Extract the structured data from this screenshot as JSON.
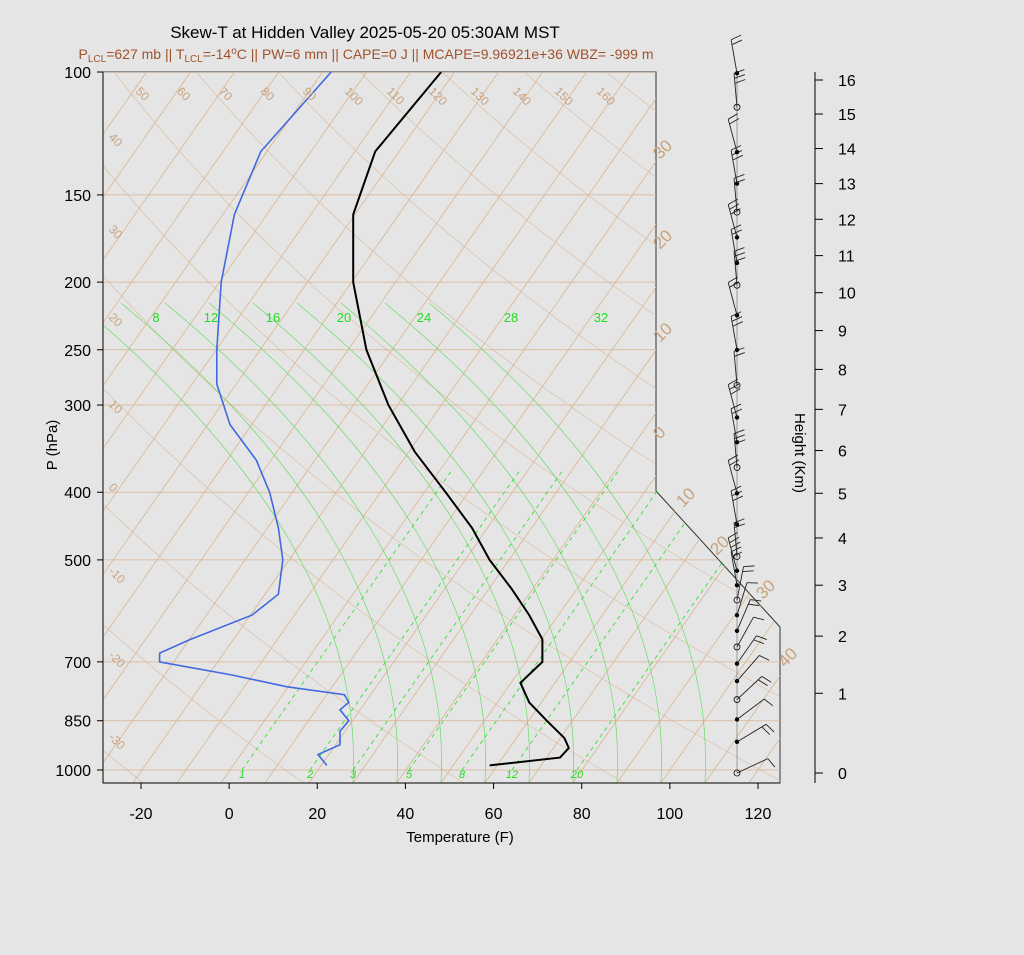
{
  "title": "Skew-T at Hidden Valley 2025-05-20 05:30AM MST",
  "subtitle_parts": {
    "p_lcl_prefix": "P",
    "p_lcl_sub": "LCL",
    "p_lcl_value": "=627 mb || T",
    "t_lcl_sub": "LCL",
    "t_lcl_value": "=-14",
    "deg_sup": "o",
    "rest": "C || PW=6 mm || CAPE=0 J || MCAPE=9.96921e+36 WBZ= -999 m"
  },
  "colors": {
    "background": "#e5e5e5",
    "plot_bg": "#e5e5e5",
    "isotherm": "#d9b48f",
    "isobar": "#d9b48f",
    "mixing_ratio": "#22dd22",
    "temperature": "#000000",
    "dewpoint": "#4169e1",
    "subtitle": "#a0522d"
  },
  "chart_data": {
    "type": "skew-t",
    "xlabel": "Temperature (F)",
    "ylabel": "P (hPa)",
    "y2label": "Height (Km)",
    "x_ticks": [
      "-20",
      "0",
      "20",
      "40",
      "60",
      "80",
      "100",
      "120"
    ],
    "y_ticks": [
      "100",
      "150",
      "200",
      "250",
      "300",
      "400",
      "500",
      "700",
      "850",
      "1000"
    ],
    "height_ticks": [
      "0",
      "1",
      "2",
      "3",
      "4",
      "5",
      "6",
      "7",
      "8",
      "9",
      "10",
      "11",
      "12",
      "13",
      "14",
      "15",
      "16"
    ],
    "isotherm_labels_top": [
      "50",
      "60",
      "70",
      "80",
      "90",
      "100",
      "110",
      "120",
      "130",
      "140",
      "150",
      "160"
    ],
    "isotherm_labels_left": [
      "40",
      "30",
      "20",
      "10",
      "0",
      "-10",
      "-20",
      "-30"
    ],
    "isotherm_labels_right": [
      "30",
      "20",
      "10",
      "0",
      "10",
      "20",
      "30",
      "40"
    ],
    "mixing_ratio_labels_top": [
      "8",
      "12",
      "16",
      "20",
      "24",
      "28",
      "32"
    ],
    "mixing_ratio_labels_bottom": [
      "1",
      "2",
      "3",
      "5",
      "8",
      "12",
      "20"
    ],
    "temperature_profile": [
      {
        "p": 100,
        "t": 48
      },
      {
        "p": 130,
        "t": 33
      },
      {
        "p": 160,
        "t": 28
      },
      {
        "p": 200,
        "t": 28
      },
      {
        "p": 250,
        "t": 31
      },
      {
        "p": 300,
        "t": 36
      },
      {
        "p": 350,
        "t": 42
      },
      {
        "p": 400,
        "t": 49
      },
      {
        "p": 450,
        "t": 55
      },
      {
        "p": 500,
        "t": 59
      },
      {
        "p": 550,
        "t": 64
      },
      {
        "p": 600,
        "t": 68
      },
      {
        "p": 650,
        "t": 71
      },
      {
        "p": 700,
        "t": 71
      },
      {
        "p": 750,
        "t": 66
      },
      {
        "p": 800,
        "t": 68
      },
      {
        "p": 850,
        "t": 72
      },
      {
        "p": 900,
        "t": 76
      },
      {
        "p": 930,
        "t": 77
      },
      {
        "p": 960,
        "t": 75
      },
      {
        "p": 985,
        "t": 59
      }
    ],
    "dewpoint_profile": [
      {
        "p": 100,
        "t": 23
      },
      {
        "p": 130,
        "t": 7
      },
      {
        "p": 160,
        "t": 1
      },
      {
        "p": 200,
        "t": -2
      },
      {
        "p": 250,
        "t": -3
      },
      {
        "p": 280,
        "t": -3
      },
      {
        "p": 320,
        "t": 0
      },
      {
        "p": 360,
        "t": 6
      },
      {
        "p": 400,
        "t": 9
      },
      {
        "p": 450,
        "t": 11
      },
      {
        "p": 500,
        "t": 12
      },
      {
        "p": 560,
        "t": 11
      },
      {
        "p": 600,
        "t": 5
      },
      {
        "p": 650,
        "t": -9
      },
      {
        "p": 680,
        "t": -16
      },
      {
        "p": 700,
        "t": -16
      },
      {
        "p": 730,
        "t": 0
      },
      {
        "p": 760,
        "t": 13
      },
      {
        "p": 780,
        "t": 26
      },
      {
        "p": 800,
        "t": 27
      },
      {
        "p": 820,
        "t": 25
      },
      {
        "p": 850,
        "t": 27
      },
      {
        "p": 880,
        "t": 25
      },
      {
        "p": 920,
        "t": 25
      },
      {
        "p": 950,
        "t": 20
      },
      {
        "p": 985,
        "t": 22
      }
    ],
    "wind_height_markers_km": [
      0,
      0.3,
      0.6,
      0.9,
      1.2,
      1.5,
      1.8,
      2.1,
      2.4,
      2.7,
      3.0,
      3.3,
      3.6,
      4.3,
      5.0,
      5.6,
      6.2,
      6.8,
      7.6,
      8.5,
      9.4,
      10.2,
      10.8,
      11.5,
      12.2,
      13.0,
      13.9,
      15.2,
      16.2
    ]
  }
}
